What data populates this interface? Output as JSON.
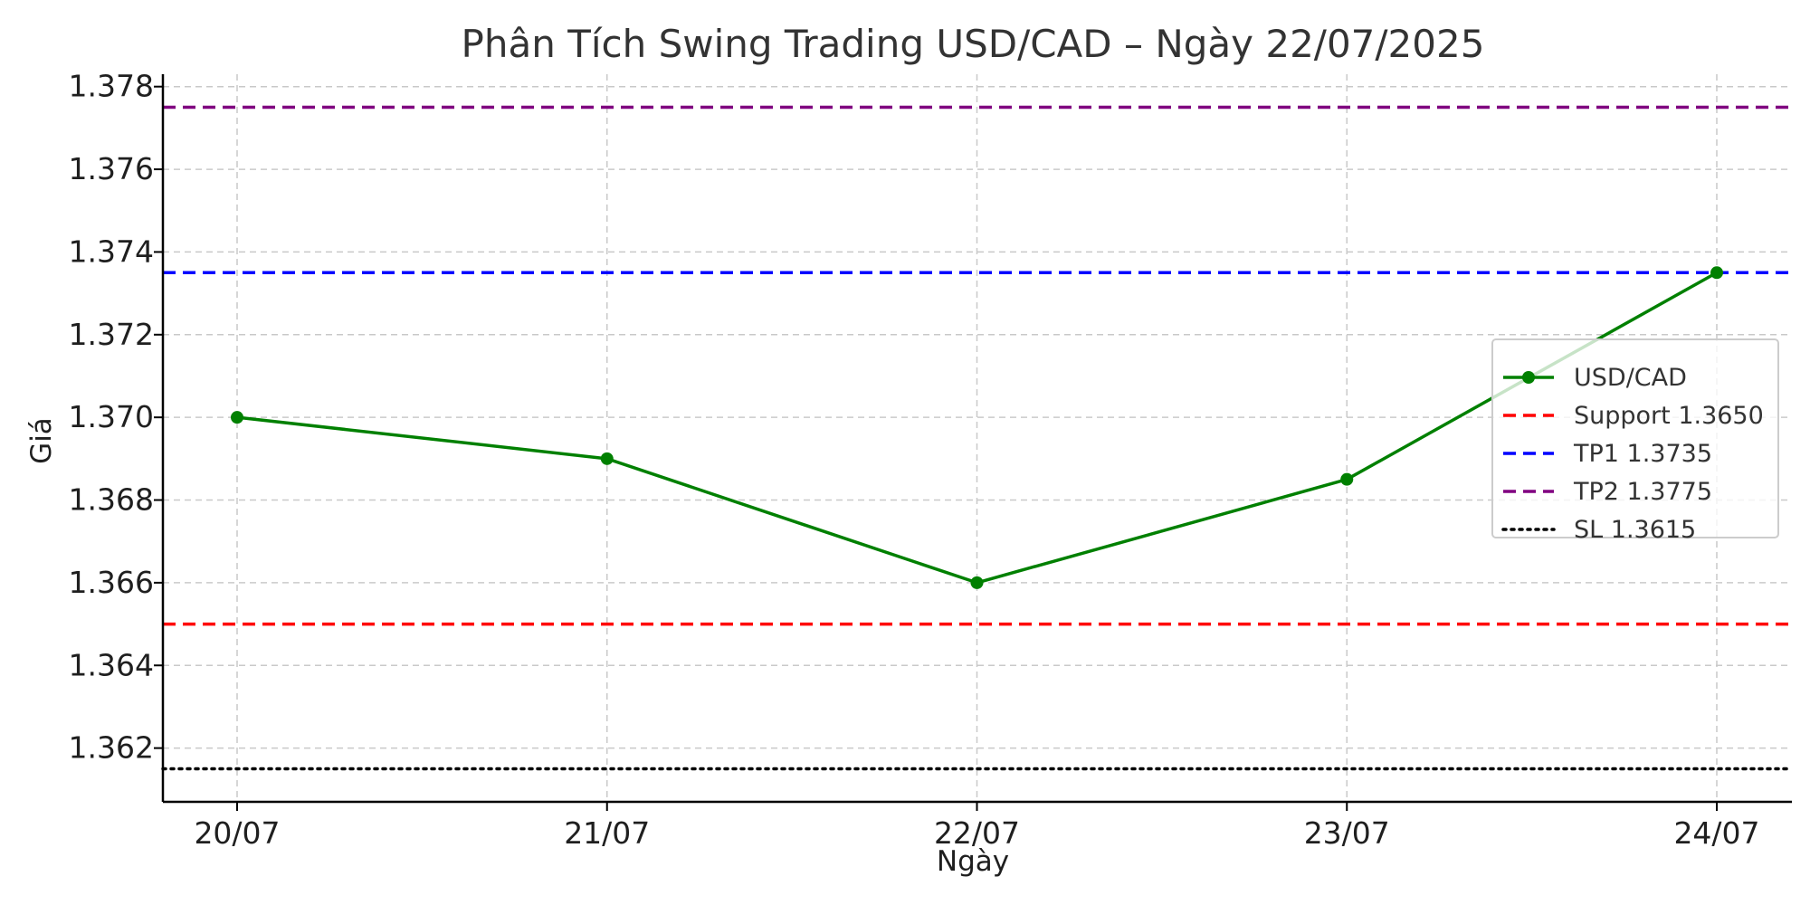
{
  "chart_data": {
    "type": "line",
    "title": "Phân Tích Swing Trading USD/CAD – Ngày 22/07/2025",
    "xlabel": "Ngày",
    "ylabel": "Giá",
    "categories": [
      "20/07",
      "21/07",
      "22/07",
      "23/07",
      "24/07"
    ],
    "ylim": [
      1.3607,
      1.3783
    ],
    "yticks": [
      1.362,
      1.364,
      1.366,
      1.368,
      1.37,
      1.372,
      1.374,
      1.376,
      1.378
    ],
    "grid": true,
    "legend_position": "right",
    "series": [
      {
        "name": "USD/CAD",
        "values": [
          1.37,
          1.369,
          1.366,
          1.3685,
          1.3735
        ],
        "color": "#008000",
        "style": "solid",
        "markers": true
      }
    ],
    "reference_lines": [
      {
        "name": "Support 1.3650",
        "value": 1.365,
        "color": "#ff0000",
        "style": "dashed"
      },
      {
        "name": "TP1 1.3735",
        "value": 1.3735,
        "color": "#0000ff",
        "style": "dashed"
      },
      {
        "name": "TP2 1.3775",
        "value": 1.3775,
        "color": "#800080",
        "style": "dashed"
      },
      {
        "name": "SL 1.3615",
        "value": 1.3615,
        "color": "#000000",
        "style": "dotted"
      }
    ]
  }
}
